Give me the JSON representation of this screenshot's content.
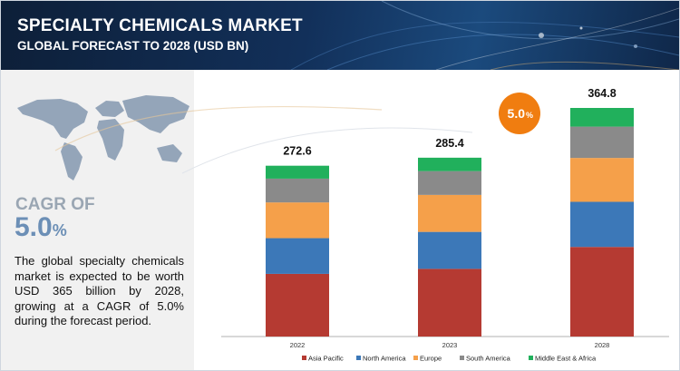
{
  "header": {
    "title": "SPECIALTY CHEMICALS MARKET",
    "subtitle": "GLOBAL FORECAST TO 2028 (USD BN)"
  },
  "sidebar": {
    "cagr_label": "CAGR OF",
    "cagr_value": "5.0",
    "cagr_unit": "%",
    "description": "The global specialty chemicals market is expected to be worth USD 365 billion by 2028, growing at a CAGR of 5.0% during the forecast period."
  },
  "colors": {
    "asia_pacific": "#b53a32",
    "north_america": "#3c78b8",
    "europe": "#f5a04a",
    "south_america": "#8a8a8a",
    "middle_east_africa": "#21b05c",
    "cagr_bubble": "#f07d10"
  },
  "chart_data": {
    "type": "bar",
    "stacked": true,
    "title": "SPECIALTY CHEMICALS MARKET",
    "subtitle": "GLOBAL FORECAST TO 2028 (USD BN)",
    "categories": [
      "2022",
      "2023",
      "2028"
    ],
    "totals": [
      272.6,
      285.4,
      364.8
    ],
    "total_labels": [
      "272.6",
      "285.4",
      "364.8"
    ],
    "series": [
      {
        "name": "Asia Pacific",
        "values": [
          100,
          108,
          143
        ]
      },
      {
        "name": "North America",
        "values": [
          57,
          59,
          72
        ]
      },
      {
        "name": "Europe",
        "values": [
          57,
          59,
          70
        ]
      },
      {
        "name": "South America",
        "values": [
          38,
          38,
          50
        ]
      },
      {
        "name": "Middle East & Africa",
        "values": [
          20.6,
          21.4,
          29.8
        ]
      }
    ],
    "annotation": {
      "text": "5.0",
      "unit": "%"
    },
    "ylim": [
      0,
      400
    ],
    "legend_position": "bottom",
    "xlabel": "",
    "ylabel": ""
  }
}
